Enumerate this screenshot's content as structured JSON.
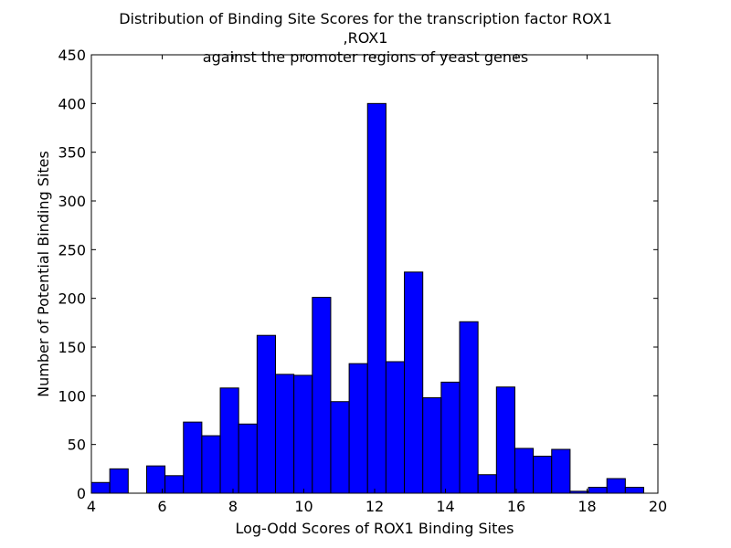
{
  "chart_data": {
    "type": "bar",
    "title_lines": [
      "Distribution of Binding Site Scores for the transcription factor ROX1",
      ",ROX1",
      "against the promoter regions of yeast genes"
    ],
    "xlabel": "Log-Odd Scores of ROX1 Binding Sites",
    "ylabel": "Number of Potential Binding Sites",
    "xlim": [
      4,
      20
    ],
    "ylim": [
      0,
      450
    ],
    "x_ticks": [
      4,
      6,
      8,
      10,
      12,
      14,
      16,
      18,
      20
    ],
    "y_ticks": [
      0,
      50,
      100,
      150,
      200,
      250,
      300,
      350,
      400,
      450
    ],
    "grid": false,
    "bar_color": "#0000ff",
    "bin_edges": [
      4.0,
      4.52,
      5.04,
      5.56,
      6.08,
      6.6,
      7.12,
      7.64,
      8.16,
      8.68,
      9.2,
      9.72,
      10.24,
      10.76,
      11.28,
      11.8,
      12.32,
      12.84,
      13.36,
      13.88,
      14.4,
      14.92,
      15.44,
      15.96,
      16.48,
      17.0,
      17.52,
      18.04,
      18.56,
      19.08,
      19.6
    ],
    "values": [
      11,
      25,
      0,
      28,
      18,
      73,
      59,
      108,
      71,
      162,
      122,
      121,
      201,
      94,
      133,
      400,
      135,
      227,
      98,
      114,
      176,
      19,
      109,
      46,
      38,
      45,
      2,
      6,
      15,
      6
    ]
  }
}
